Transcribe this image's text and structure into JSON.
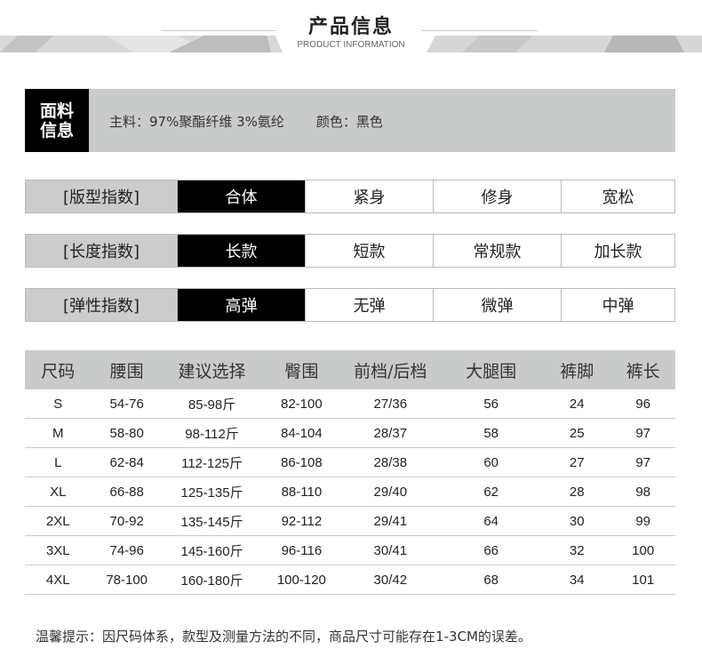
{
  "header": {
    "title": "产品信息",
    "subtitle": "PRODUCT INFORMATION"
  },
  "fabric": {
    "label_line1": "面料",
    "label_line2": "信息",
    "material": "主料：97%聚酯纤维 3%氨纶",
    "color": "颜色：黑色"
  },
  "indices": [
    {
      "label": "[版型指数]",
      "options": [
        "合体",
        "紧身",
        "修身",
        "宽松"
      ],
      "selected": 0
    },
    {
      "label": "[长度指数]",
      "options": [
        "长款",
        "短款",
        "常规款",
        "加长款"
      ],
      "selected": 0
    },
    {
      "label": "[弹性指数]",
      "options": [
        "高弹",
        "无弹",
        "微弹",
        "中弹"
      ],
      "selected": 0
    }
  ],
  "size_table": {
    "headers": [
      "尺码",
      "腰围",
      "建议选择",
      "臀围",
      "前档/后档",
      "大腿围",
      "裤脚",
      "裤长"
    ],
    "rows": [
      [
        "S",
        "54-76",
        "85-98斤",
        "82-100",
        "27/36",
        "56",
        "24",
        "96"
      ],
      [
        "M",
        "58-80",
        "98-112斤",
        "84-104",
        "28/37",
        "58",
        "25",
        "97"
      ],
      [
        "L",
        "62-84",
        "112-125斤",
        "86-108",
        "28/38",
        "60",
        "27",
        "97"
      ],
      [
        "XL",
        "66-88",
        "125-135斤",
        "88-110",
        "29/40",
        "62",
        "28",
        "98"
      ],
      [
        "2XL",
        "70-92",
        "135-145斤",
        "92-112",
        "29/41",
        "64",
        "30",
        "99"
      ],
      [
        "3XL",
        "74-96",
        "145-160斤",
        "96-116",
        "30/41",
        "66",
        "32",
        "100"
      ],
      [
        "4XL",
        "78-100",
        "160-180斤",
        "100-120",
        "30/42",
        "68",
        "34",
        "101"
      ]
    ]
  },
  "note": "温馨提示：因尺码体系，款型及测量方法的不同，商品尺寸可能存在1-3CM的误差。"
}
